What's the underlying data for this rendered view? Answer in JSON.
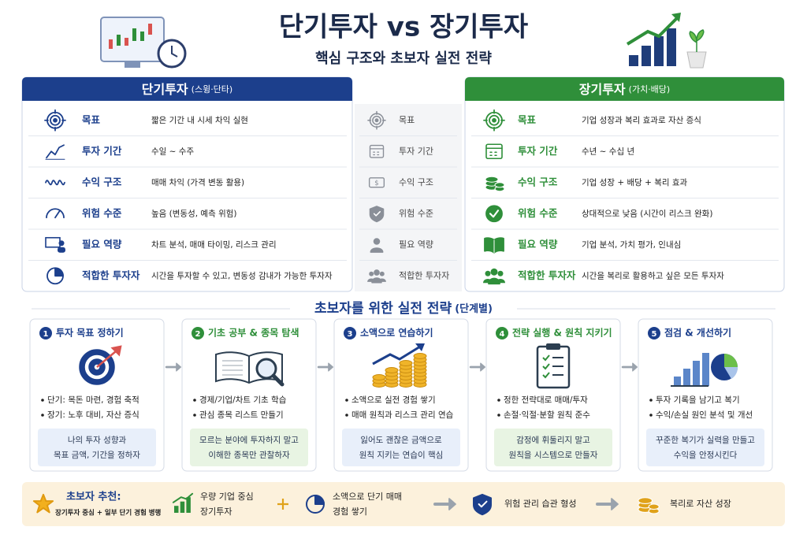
{
  "header": {
    "title": "단기투자 vs 장기투자",
    "subtitle": "핵심 구조와 초보자 실전 전략"
  },
  "comparison": {
    "rows": [
      "목표",
      "투자 기간",
      "수익 구조",
      "위험 수준",
      "필요 역량",
      "적합한 투자자"
    ],
    "short": {
      "title": "단기투자",
      "tag": "(스윙·단타)",
      "values": [
        "짧은 기간 내 시세 차익 실현",
        "수일 ~ 수주",
        "매매 차익 (가격 변동 활용)",
        "높음 (변동성, 예측 위험)",
        "차트 분석, 매매 타이밍, 리스크 관리",
        "시간을 투자할 수 있고, 변동성 감내가 가능한 투자자"
      ]
    },
    "long": {
      "title": "장기투자",
      "tag": "(가치·배당)",
      "values": [
        "기업 성장과 복리 효과로 자산 증식",
        "수년 ~ 수십 년",
        "기업 성장 + 배당 + 복리 효과",
        "상대적으로 낮음 (시간이 리스크 완화)",
        "기업 분석, 가치 평가, 인내심",
        "시간을 복리로 활용하고 싶은 모든 투자자"
      ]
    }
  },
  "strategy": {
    "title": "초보자를 위한 실전 전략",
    "tag": "(단계별)",
    "steps": [
      {
        "number": "1",
        "title": "투자 목표 정하기",
        "bullets": [
          "단기: 목돈 마련, 경험 축적",
          "장기: 노후 대비, 자산 증식"
        ],
        "note": [
          "나의 투자 성향과",
          "목표 금액, 기간을 정하자"
        ]
      },
      {
        "number": "2",
        "title": "기초 공부 & 종목 탐색",
        "bullets": [
          "경제/기업/차트 기초 학습",
          "관심 종목 리스트 만들기"
        ],
        "note": [
          "모르는 분야에 투자하지 말고",
          "이해한 종목만 관찰하자"
        ]
      },
      {
        "number": "3",
        "title": "소액으로 연습하기",
        "bullets": [
          "소액으로 실전 경험 쌓기",
          "매매 원칙과 리스크 관리 연습"
        ],
        "note": [
          "잃어도 괜찮은 금액으로",
          "원칙 지키는 연습이 핵심"
        ]
      },
      {
        "number": "4",
        "title": "전략 실행 & 원칙 지키기",
        "bullets": [
          "정한 전략대로 매매/투자",
          "손절·익절·분할 원칙 준수"
        ],
        "note": [
          "감정에 휘둘리지 말고",
          "원칙을 시스템으로 만들자"
        ]
      },
      {
        "number": "5",
        "title": "점검 & 개선하기",
        "bullets": [
          "투자 기록을 남기고 복기",
          "수익/손실 원인 분석 및 개선"
        ],
        "note": [
          "꾸준한 복기가 실력을 만들고",
          "수익을 안정시킨다"
        ]
      }
    ]
  },
  "recommend": {
    "title": "초보자 추천:",
    "subtitle": "장기투자 중심 + 일부 단기 경험 병행",
    "items": [
      [
        "우량 기업 중심",
        "장기투자"
      ],
      [
        "소액으로 단기 매매",
        "경험 쌓기"
      ],
      [
        "위험 관리 습관 형성"
      ],
      [
        "복리로 자산 성장"
      ]
    ]
  }
}
